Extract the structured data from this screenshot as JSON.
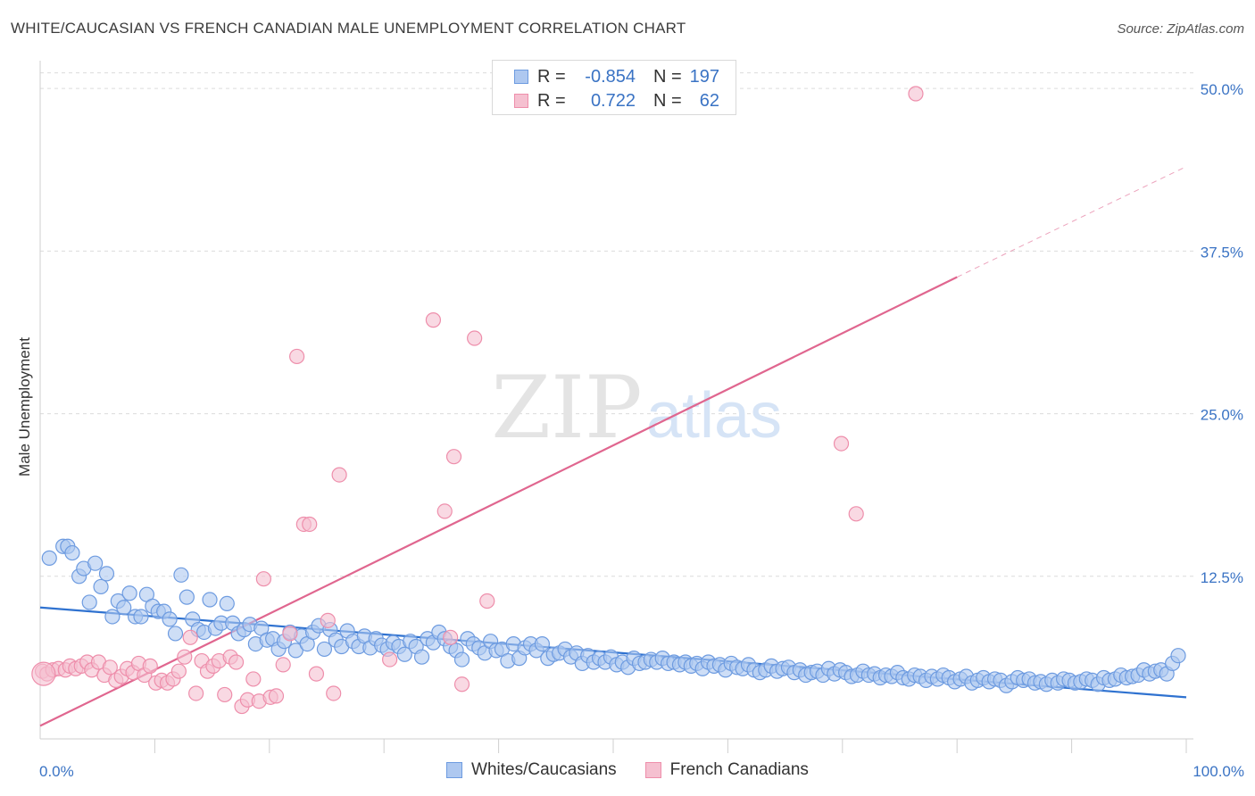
{
  "title": "WHITE/CAUCASIAN VS FRENCH CANADIAN MALE UNEMPLOYMENT CORRELATION CHART",
  "source": "Source: ZipAtlas.com",
  "colors": {
    "blue_fill": "#aec8f0",
    "blue_stroke": "#6d9be0",
    "blue_line": "#2f72d0",
    "pink_fill": "#f5c0d0",
    "pink_stroke": "#ee8eab",
    "pink_line": "#e0668f",
    "tick_label": "#3a73c4",
    "grid": "#dcdcdc"
  },
  "legend": {
    "rows": [
      {
        "label": "R =",
        "r": "-0.854",
        "n_label": "N =",
        "n": "197",
        "series": "blue"
      },
      {
        "label": "R =",
        "r": "0.722",
        "n_label": "N =",
        "n": "62",
        "series": "pink"
      }
    ],
    "bottom": [
      {
        "name": "Whites/Caucasians",
        "series": "blue"
      },
      {
        "name": "French Canadians",
        "series": "pink"
      }
    ]
  },
  "watermark": {
    "zip": "ZIP",
    "atlas": "atlas"
  },
  "chart_data": {
    "type": "scatter",
    "title": "WHITE/CAUCASIAN VS FRENCH CANADIAN MALE UNEMPLOYMENT CORRELATION CHART",
    "xlabel": "",
    "ylabel": "Male Unemployment",
    "xlim": [
      0,
      100
    ],
    "ylim": [
      0,
      52
    ],
    "x_tick_labels": [
      {
        "value": 0,
        "label": "0.0%"
      },
      {
        "value": 100,
        "label": "100.0%"
      }
    ],
    "y_ticks": [
      {
        "value": 12.5,
        "label": "12.5%"
      },
      {
        "value": 25.0,
        "label": "25.0%"
      },
      {
        "value": 37.5,
        "label": "37.5%"
      },
      {
        "value": 50.0,
        "label": "50.0%"
      }
    ],
    "grid": true,
    "legend_position": "top-center",
    "series": [
      {
        "name": "Whites/Caucasians",
        "r": -0.854,
        "n": 197,
        "trend": {
          "x0": 0,
          "y0": 10.1,
          "x1": 100,
          "y1": 3.2
        },
        "points": [
          [
            0.8,
            13.9
          ],
          [
            2.0,
            14.8
          ],
          [
            2.4,
            14.8
          ],
          [
            2.8,
            14.3
          ],
          [
            3.4,
            12.5
          ],
          [
            3.8,
            13.1
          ],
          [
            4.3,
            10.5
          ],
          [
            4.8,
            13.5
          ],
          [
            5.3,
            11.7
          ],
          [
            5.8,
            12.7
          ],
          [
            6.3,
            9.4
          ],
          [
            6.8,
            10.6
          ],
          [
            7.3,
            10.1
          ],
          [
            7.8,
            11.2
          ],
          [
            8.3,
            9.4
          ],
          [
            8.8,
            9.4
          ],
          [
            9.3,
            11.1
          ],
          [
            9.8,
            10.2
          ],
          [
            10.3,
            9.8
          ],
          [
            10.8,
            9.8
          ],
          [
            11.3,
            9.2
          ],
          [
            11.8,
            8.1
          ],
          [
            12.3,
            12.6
          ],
          [
            12.8,
            10.9
          ],
          [
            13.3,
            9.2
          ],
          [
            13.8,
            8.4
          ],
          [
            14.3,
            8.2
          ],
          [
            14.8,
            10.7
          ],
          [
            15.3,
            8.5
          ],
          [
            15.8,
            8.9
          ],
          [
            16.3,
            10.4
          ],
          [
            16.8,
            8.9
          ],
          [
            17.3,
            8.1
          ],
          [
            17.8,
            8.4
          ],
          [
            18.3,
            8.8
          ],
          [
            18.8,
            7.3
          ],
          [
            19.3,
            8.5
          ],
          [
            19.8,
            7.6
          ],
          [
            20.3,
            7.7
          ],
          [
            20.8,
            6.9
          ],
          [
            21.3,
            7.5
          ],
          [
            21.8,
            8.2
          ],
          [
            22.3,
            6.8
          ],
          [
            22.8,
            7.9
          ],
          [
            23.3,
            7.3
          ],
          [
            23.8,
            8.2
          ],
          [
            24.3,
            8.7
          ],
          [
            24.8,
            6.9
          ],
          [
            25.3,
            8.4
          ],
          [
            25.8,
            7.6
          ],
          [
            26.3,
            7.1
          ],
          [
            26.8,
            8.3
          ],
          [
            27.3,
            7.5
          ],
          [
            27.8,
            7.1
          ],
          [
            28.3,
            7.9
          ],
          [
            28.8,
            7.0
          ],
          [
            29.3,
            7.7
          ],
          [
            29.8,
            7.2
          ],
          [
            30.3,
            6.9
          ],
          [
            30.8,
            7.4
          ],
          [
            31.3,
            7.1
          ],
          [
            31.8,
            6.5
          ],
          [
            32.3,
            7.5
          ],
          [
            32.8,
            7.1
          ],
          [
            33.3,
            6.3
          ],
          [
            33.8,
            7.7
          ],
          [
            34.3,
            7.4
          ],
          [
            34.8,
            8.2
          ],
          [
            35.3,
            7.7
          ],
          [
            35.8,
            7.1
          ],
          [
            36.3,
            6.8
          ],
          [
            36.8,
            6.1
          ],
          [
            37.3,
            7.7
          ],
          [
            37.8,
            7.3
          ],
          [
            38.3,
            7.0
          ],
          [
            38.8,
            6.6
          ],
          [
            39.3,
            7.5
          ],
          [
            39.8,
            6.8
          ],
          [
            40.3,
            6.9
          ],
          [
            40.8,
            6.0
          ],
          [
            41.3,
            7.3
          ],
          [
            41.8,
            6.2
          ],
          [
            42.3,
            7.0
          ],
          [
            42.8,
            7.3
          ],
          [
            43.3,
            6.8
          ],
          [
            43.8,
            7.3
          ],
          [
            44.3,
            6.2
          ],
          [
            44.8,
            6.5
          ],
          [
            45.3,
            6.6
          ],
          [
            45.8,
            6.9
          ],
          [
            46.3,
            6.3
          ],
          [
            46.8,
            6.6
          ],
          [
            47.3,
            5.8
          ],
          [
            47.8,
            6.4
          ],
          [
            48.3,
            5.9
          ],
          [
            48.8,
            6.2
          ],
          [
            49.3,
            5.9
          ],
          [
            49.8,
            6.3
          ],
          [
            50.3,
            5.7
          ],
          [
            50.8,
            5.9
          ],
          [
            51.3,
            5.5
          ],
          [
            51.8,
            6.2
          ],
          [
            52.3,
            5.8
          ],
          [
            52.8,
            5.9
          ],
          [
            53.3,
            6.1
          ],
          [
            53.8,
            5.9
          ],
          [
            54.3,
            6.2
          ],
          [
            54.8,
            5.8
          ],
          [
            55.3,
            5.9
          ],
          [
            55.8,
            5.7
          ],
          [
            56.3,
            5.9
          ],
          [
            56.8,
            5.6
          ],
          [
            57.3,
            5.8
          ],
          [
            57.8,
            5.4
          ],
          [
            58.3,
            5.9
          ],
          [
            58.8,
            5.6
          ],
          [
            59.3,
            5.7
          ],
          [
            59.8,
            5.3
          ],
          [
            60.3,
            5.8
          ],
          [
            60.8,
            5.5
          ],
          [
            61.3,
            5.4
          ],
          [
            61.8,
            5.7
          ],
          [
            62.3,
            5.3
          ],
          [
            62.8,
            5.1
          ],
          [
            63.3,
            5.3
          ],
          [
            63.8,
            5.6
          ],
          [
            64.3,
            5.2
          ],
          [
            64.8,
            5.4
          ],
          [
            65.3,
            5.5
          ],
          [
            65.8,
            5.1
          ],
          [
            66.3,
            5.3
          ],
          [
            66.8,
            4.9
          ],
          [
            67.3,
            5.1
          ],
          [
            67.8,
            5.2
          ],
          [
            68.3,
            4.9
          ],
          [
            68.8,
            5.4
          ],
          [
            69.3,
            5.0
          ],
          [
            69.8,
            5.3
          ],
          [
            70.3,
            5.1
          ],
          [
            70.8,
            4.8
          ],
          [
            71.3,
            4.9
          ],
          [
            71.8,
            5.2
          ],
          [
            72.3,
            4.9
          ],
          [
            72.8,
            5.0
          ],
          [
            73.3,
            4.7
          ],
          [
            73.8,
            4.9
          ],
          [
            74.3,
            4.8
          ],
          [
            74.8,
            5.1
          ],
          [
            75.3,
            4.7
          ],
          [
            75.8,
            4.6
          ],
          [
            76.3,
            4.9
          ],
          [
            76.8,
            4.8
          ],
          [
            77.3,
            4.5
          ],
          [
            77.8,
            4.8
          ],
          [
            78.3,
            4.6
          ],
          [
            78.8,
            4.9
          ],
          [
            79.3,
            4.7
          ],
          [
            79.8,
            4.4
          ],
          [
            80.3,
            4.6
          ],
          [
            80.8,
            4.8
          ],
          [
            81.3,
            4.3
          ],
          [
            81.8,
            4.5
          ],
          [
            82.3,
            4.7
          ],
          [
            82.8,
            4.4
          ],
          [
            83.3,
            4.6
          ],
          [
            83.8,
            4.5
          ],
          [
            84.3,
            4.1
          ],
          [
            84.8,
            4.4
          ],
          [
            85.3,
            4.7
          ],
          [
            85.8,
            4.5
          ],
          [
            86.3,
            4.6
          ],
          [
            86.8,
            4.3
          ],
          [
            87.3,
            4.4
          ],
          [
            87.8,
            4.2
          ],
          [
            88.3,
            4.5
          ],
          [
            88.8,
            4.3
          ],
          [
            89.3,
            4.6
          ],
          [
            89.8,
            4.5
          ],
          [
            90.3,
            4.3
          ],
          [
            90.8,
            4.4
          ],
          [
            91.3,
            4.6
          ],
          [
            91.8,
            4.5
          ],
          [
            92.3,
            4.2
          ],
          [
            92.8,
            4.7
          ],
          [
            93.3,
            4.5
          ],
          [
            93.8,
            4.6
          ],
          [
            94.3,
            4.9
          ],
          [
            94.8,
            4.7
          ],
          [
            95.3,
            4.8
          ],
          [
            95.8,
            4.9
          ],
          [
            96.3,
            5.3
          ],
          [
            96.8,
            5.0
          ],
          [
            97.3,
            5.2
          ],
          [
            97.8,
            5.3
          ],
          [
            98.3,
            5.0
          ],
          [
            98.8,
            5.8
          ],
          [
            99.3,
            6.4
          ]
        ]
      },
      {
        "name": "French Canadians",
        "r": 0.722,
        "n": 62,
        "trend": {
          "x0": 0,
          "y0": 1.0,
          "x1": 80,
          "y1": 35.5,
          "dashed_to": {
            "x": 100,
            "y": 44.0
          }
        },
        "points": [
          [
            0.2,
            5.2
          ],
          [
            0.6,
            5.0
          ],
          [
            1.1,
            5.3
          ],
          [
            1.6,
            5.4
          ],
          [
            2.2,
            5.3
          ],
          [
            2.6,
            5.6
          ],
          [
            3.1,
            5.4
          ],
          [
            3.6,
            5.6
          ],
          [
            4.1,
            5.9
          ],
          [
            4.5,
            5.3
          ],
          [
            5.1,
            5.9
          ],
          [
            5.6,
            4.9
          ],
          [
            6.1,
            5.5
          ],
          [
            6.6,
            4.5
          ],
          [
            7.1,
            4.8
          ],
          [
            7.6,
            5.4
          ],
          [
            8.1,
            5.1
          ],
          [
            8.6,
            5.8
          ],
          [
            9.1,
            4.9
          ],
          [
            9.6,
            5.6
          ],
          [
            10.1,
            4.3
          ],
          [
            10.6,
            4.5
          ],
          [
            11.1,
            4.3
          ],
          [
            11.6,
            4.6
          ],
          [
            12.1,
            5.2
          ],
          [
            12.6,
            6.3
          ],
          [
            13.1,
            7.8
          ],
          [
            13.6,
            3.5
          ],
          [
            14.1,
            6.0
          ],
          [
            14.6,
            5.2
          ],
          [
            15.1,
            5.6
          ],
          [
            15.6,
            6.0
          ],
          [
            16.1,
            3.4
          ],
          [
            16.6,
            6.3
          ],
          [
            17.1,
            5.9
          ],
          [
            17.6,
            2.5
          ],
          [
            18.1,
            3.0
          ],
          [
            18.6,
            4.6
          ],
          [
            19.1,
            2.9
          ],
          [
            19.5,
            12.3
          ],
          [
            20.1,
            3.2
          ],
          [
            20.6,
            3.3
          ],
          [
            21.2,
            5.7
          ],
          [
            21.8,
            8.1
          ],
          [
            22.4,
            29.4
          ],
          [
            23.0,
            16.5
          ],
          [
            23.5,
            16.5
          ],
          [
            24.1,
            5.0
          ],
          [
            25.1,
            9.1
          ],
          [
            25.6,
            3.5
          ],
          [
            26.1,
            20.3
          ],
          [
            30.5,
            6.1
          ],
          [
            34.3,
            32.2
          ],
          [
            35.3,
            17.5
          ],
          [
            35.8,
            7.8
          ],
          [
            36.1,
            21.7
          ],
          [
            36.8,
            4.2
          ],
          [
            37.9,
            30.8
          ],
          [
            39.0,
            10.6
          ],
          [
            69.9,
            22.7
          ],
          [
            71.2,
            17.3
          ],
          [
            76.4,
            49.6
          ]
        ]
      }
    ]
  }
}
